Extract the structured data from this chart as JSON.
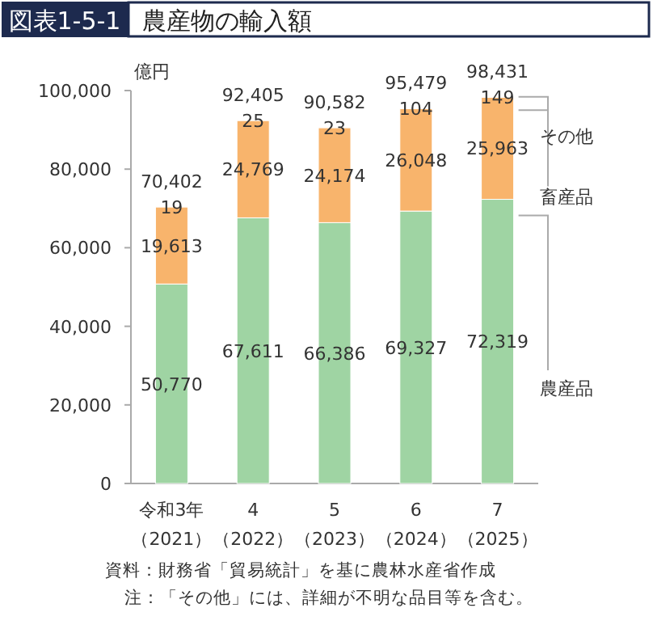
{
  "chart_data": {
    "type": "bar",
    "stacked": true,
    "title": "農産物の輸入額",
    "subtitle": "図表1-5-1",
    "ylabel": "億円",
    "categories": [
      "令和3年（2021）",
      "4（2022）",
      "5（2023）",
      "6（2024）",
      "7（2025）"
    ],
    "series": [
      {
        "name": "農産品",
        "color": "#9fd4a3",
        "values": [
          50770,
          67611,
          66386,
          69327,
          72319
        ],
        "value_labels": [
          "50,770",
          "67,611",
          "66,386",
          "69,327",
          "72,319"
        ]
      },
      {
        "name": "畜産品",
        "color": "#f8b46c",
        "values": [
          19613,
          24769,
          24174,
          26048,
          25963
        ],
        "value_labels": [
          "19,613",
          "24,769",
          "24,174",
          "26,048",
          "25,963"
        ]
      },
      {
        "name": "その他",
        "color": "#f6c48a",
        "values": [
          19,
          25,
          23,
          104,
          149
        ],
        "value_labels": [
          "19",
          "25",
          "23",
          "104",
          "149"
        ]
      }
    ],
    "totals": [
      "70,402",
      "92,405",
      "90,582",
      "95,479",
      "98,431"
    ],
    "ylim": [
      0,
      100000
    ],
    "yticks": [
      {
        "value": 0,
        "label": "0"
      },
      {
        "value": 20000,
        "label": "20,000"
      },
      {
        "value": 40000,
        "label": "40,000"
      },
      {
        "value": 60000,
        "label": "60,000"
      },
      {
        "value": 80000,
        "label": "80,000"
      },
      {
        "value": 100000,
        "label": "100,000"
      }
    ],
    "grid": false,
    "legend": "right",
    "annotations": [
      "資料：財務省「貿易統計」を基に農林水産省作成",
      "注：「その他」には、詳細が不明な品目等を含む。"
    ]
  }
}
